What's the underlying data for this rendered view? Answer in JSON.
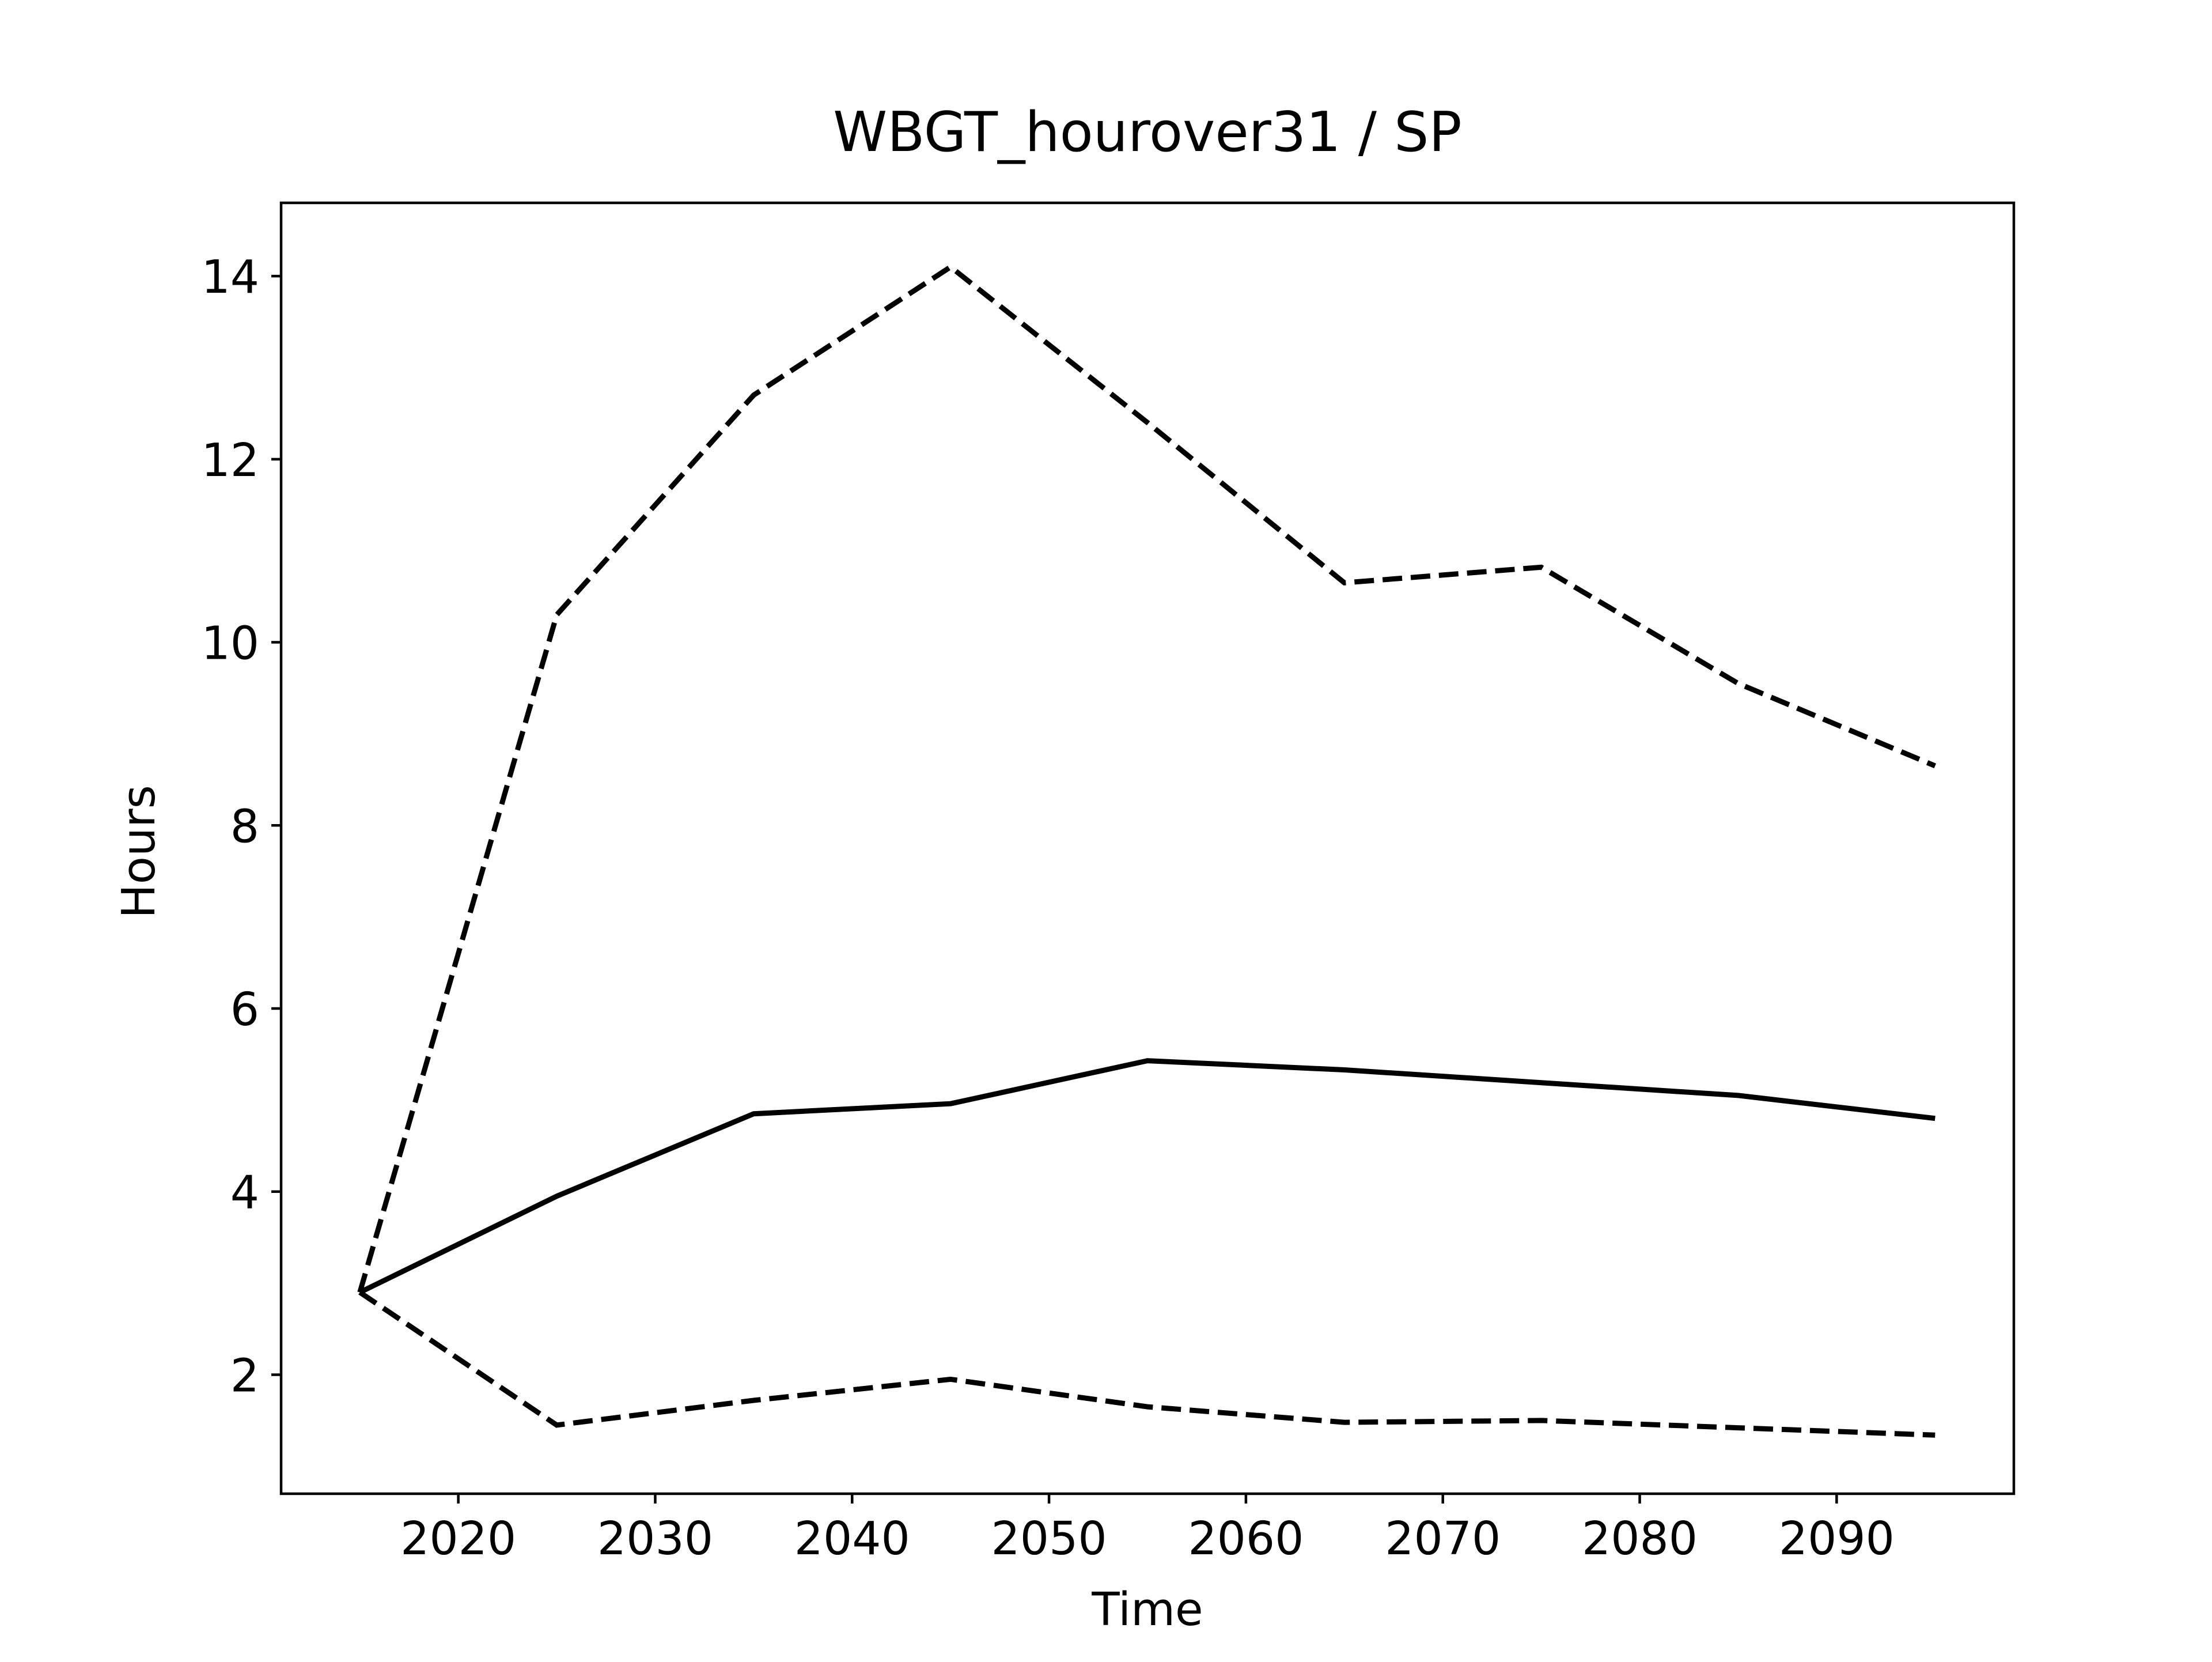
{
  "chart_data": {
    "type": "line",
    "title": "WBGT_hourover31 / SP",
    "xlabel": "Time",
    "ylabel": "Hours",
    "xlim": [
      2011,
      2099
    ],
    "ylim": [
      0.7,
      14.8
    ],
    "xticks": [
      2020,
      2030,
      2040,
      2050,
      2060,
      2070,
      2080,
      2090
    ],
    "yticks": [
      2,
      4,
      6,
      8,
      10,
      12,
      14
    ],
    "grid": false,
    "legend": "none",
    "x": [
      2015,
      2025,
      2035,
      2045,
      2055,
      2065,
      2075,
      2085,
      2095
    ],
    "series": [
      {
        "style": "dashed",
        "color": "#000000",
        "values": [
          2.9,
          10.3,
          12.7,
          14.1,
          12.4,
          10.65,
          10.82,
          9.55,
          8.65
        ]
      },
      {
        "style": "solid",
        "color": "#000000",
        "values": [
          2.9,
          3.95,
          4.85,
          4.96,
          5.43,
          5.33,
          5.19,
          5.05,
          4.8
        ]
      },
      {
        "style": "dashed",
        "color": "#000000",
        "values": [
          2.9,
          1.45,
          1.72,
          1.95,
          1.65,
          1.48,
          1.5,
          1.42,
          1.34
        ]
      }
    ]
  }
}
